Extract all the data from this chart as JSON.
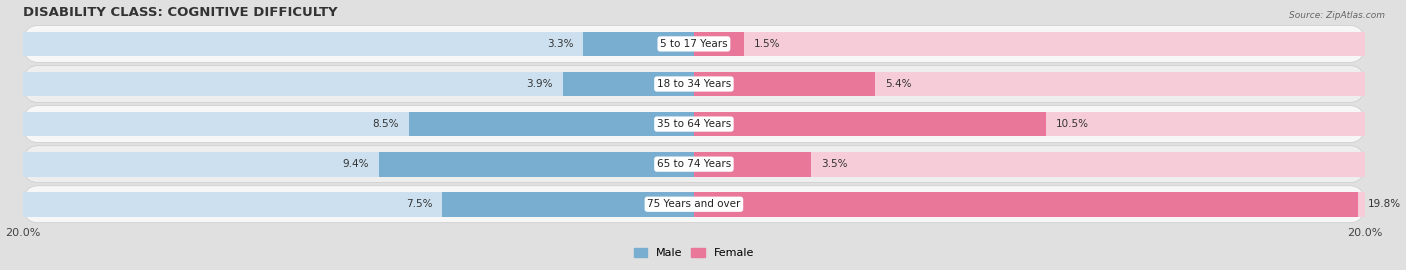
{
  "title": "DISABILITY CLASS: COGNITIVE DIFFICULTY",
  "source": "Source: ZipAtlas.com",
  "categories": [
    "5 to 17 Years",
    "18 to 34 Years",
    "35 to 64 Years",
    "65 to 74 Years",
    "75 Years and over"
  ],
  "male_values": [
    3.3,
    3.9,
    8.5,
    9.4,
    7.5
  ],
  "female_values": [
    1.5,
    5.4,
    10.5,
    3.5,
    19.8
  ],
  "max_val": 20.0,
  "male_color": "#7aaed1",
  "female_color": "#e8779a",
  "male_light_color": "#cde0ef",
  "female_light_color": "#f5ccd8",
  "bg_color": "#e0e0e0",
  "row_light_color": "#f7f7f7",
  "row_dark_color": "#eeeeee",
  "title_fontsize": 9.5,
  "label_fontsize": 7.5,
  "axis_fontsize": 8,
  "legend_fontsize": 8
}
